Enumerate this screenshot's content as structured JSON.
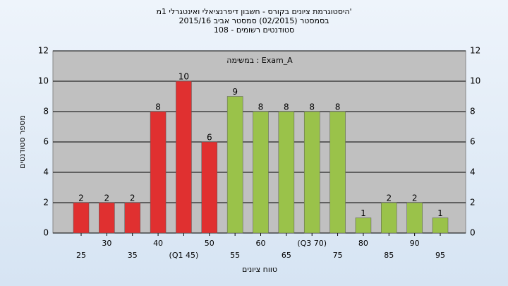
{
  "chart_data": {
    "type": "bar",
    "title": [
      "היסטוגרמת ציונים בקורס - חשבון דיפרנציאלי ואינטגרלי 1מ'",
      "בסמסטר (02/2015) סמסטר אביב 2015/16",
      "סטודנטים רשומים - 108"
    ],
    "annotation": "במשימה : Exam_A",
    "y_label": "מספר סטודנטים",
    "x_label": "טווח ציונים",
    "categories": [
      "25",
      "30",
      "35",
      "40",
      "(Q1 45)",
      "50",
      "55",
      "60",
      "65",
      "(Q3 70)",
      "75",
      "80",
      "85",
      "90",
      "95"
    ],
    "values": [
      2,
      2,
      2,
      8,
      10,
      6,
      9,
      8,
      8,
      8,
      8,
      1,
      2,
      2,
      1
    ],
    "colors": [
      "#e03030",
      "#e03030",
      "#e03030",
      "#e03030",
      "#e03030",
      "#e03030",
      "#9ac24a",
      "#9ac24a",
      "#9ac24a",
      "#9ac24a",
      "#9ac24a",
      "#9ac24a",
      "#9ac24a",
      "#9ac24a",
      "#9ac24a"
    ],
    "ylim": [
      0,
      12
    ],
    "yticks": [
      0,
      2,
      4,
      6,
      8,
      10,
      12
    ],
    "grid": true
  }
}
